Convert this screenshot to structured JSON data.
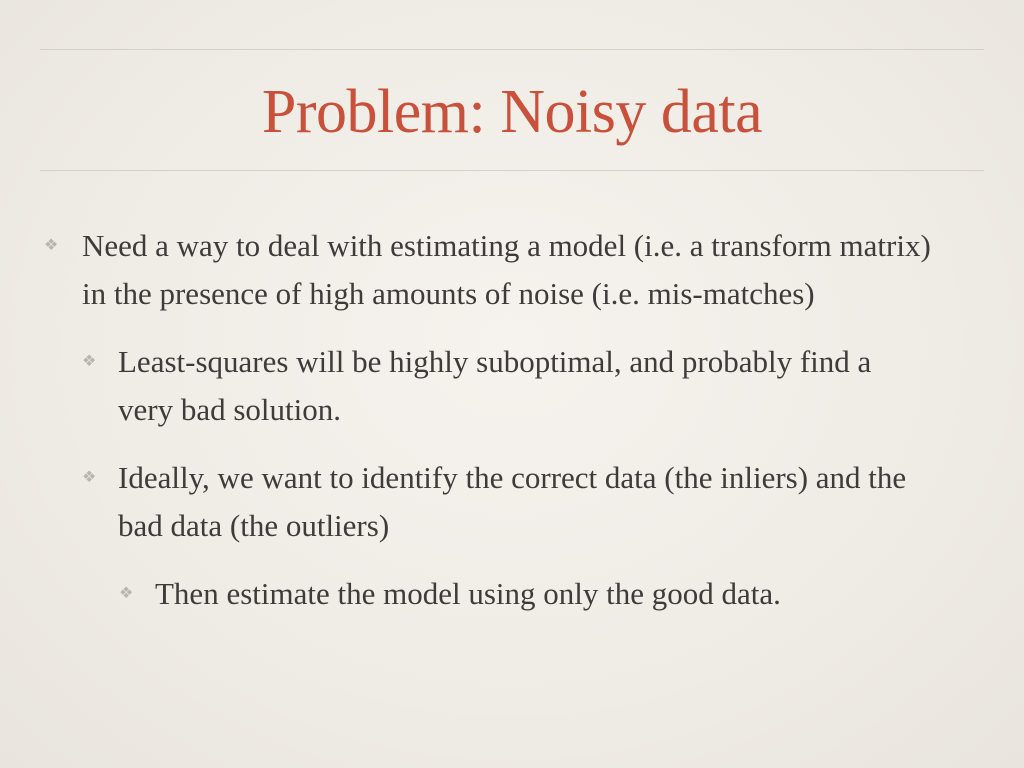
{
  "slide": {
    "title": "Problem: Noisy data",
    "bullet_glyph": "❖",
    "bullets": [
      {
        "level": 1,
        "text": "Need a way to deal with estimating a model (i.e. a transform matrix) in the presence of high amounts of noise (i.e. mis-matches)"
      },
      {
        "level": 2,
        "text": "Least-squares will be highly suboptimal, and probably find a very bad solution."
      },
      {
        "level": 2,
        "text": "Ideally, we want to identify the correct data (the inliers) and the bad data (the outliers)"
      },
      {
        "level": 3,
        "text": "Then estimate the model using only the good data."
      }
    ],
    "colors": {
      "title": "#c9503a",
      "body_text": "#3d3c3a",
      "bullet": "#b9b5ae",
      "rule": "#d4d0ca"
    }
  }
}
